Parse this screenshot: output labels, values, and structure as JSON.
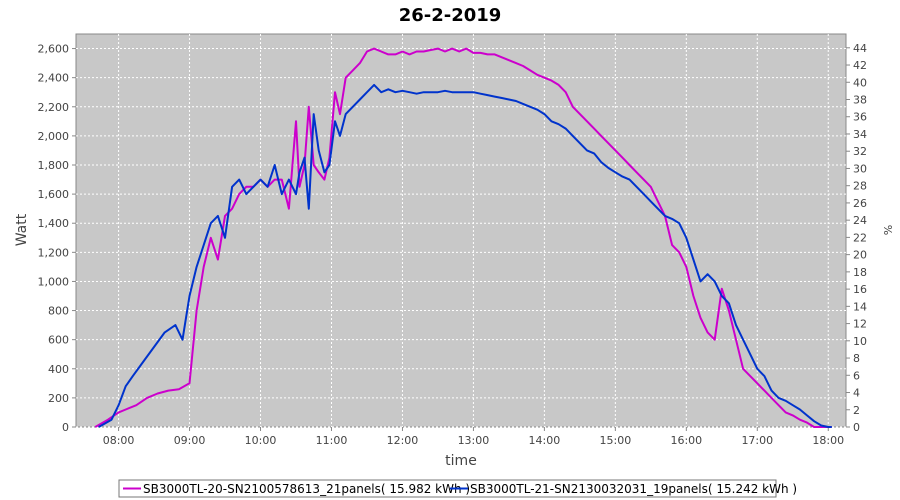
{
  "chart_data": {
    "type": "line",
    "title": "26-2-2019",
    "xlabel": "time",
    "ylabel": "Watt",
    "y2label": "%",
    "x_unit": "hours",
    "xlim": [
      7.4,
      18.25
    ],
    "ylim": [
      0,
      2700
    ],
    "y2lim": [
      0,
      45.6
    ],
    "x_ticks": [
      "08:00",
      "09:00",
      "10:00",
      "11:00",
      "12:00",
      "13:00",
      "14:00",
      "15:00",
      "16:00",
      "17:00",
      "18:00"
    ],
    "x_tick_values": [
      8,
      9,
      10,
      11,
      12,
      13,
      14,
      15,
      16,
      17,
      18
    ],
    "y_ticks": [
      0,
      200,
      400,
      600,
      800,
      1000,
      1200,
      1400,
      1600,
      1800,
      2000,
      2200,
      2400,
      2600
    ],
    "y_tick_labels": [
      "0",
      "200",
      "400",
      "600",
      "800",
      "1,000",
      "1,200",
      "1,400",
      "1,600",
      "1,800",
      "2,000",
      "2,200",
      "2,400",
      "2,600"
    ],
    "y2_ticks": [
      0,
      2,
      4,
      6,
      8,
      10,
      12,
      14,
      16,
      18,
      20,
      22,
      24,
      26,
      28,
      30,
      32,
      34,
      36,
      38,
      40,
      42,
      44
    ],
    "grid": true,
    "legend_position": "bottom",
    "series": [
      {
        "name": "SB3000TL-20-SN2100578613_21panels( 15.982 kWh )",
        "color": "#cc00cc",
        "x": [
          7.67,
          7.85,
          8.0,
          8.1,
          8.25,
          8.4,
          8.55,
          8.7,
          8.85,
          9.0,
          9.1,
          9.2,
          9.3,
          9.4,
          9.5,
          9.6,
          9.7,
          9.8,
          9.9,
          10.0,
          10.1,
          10.2,
          10.3,
          10.4,
          10.5,
          10.55,
          10.62,
          10.68,
          10.75,
          10.82,
          10.9,
          10.97,
          11.05,
          11.12,
          11.2,
          11.3,
          11.4,
          11.5,
          11.6,
          11.7,
          11.8,
          11.9,
          12.0,
          12.1,
          12.2,
          12.3,
          12.4,
          12.5,
          12.6,
          12.7,
          12.8,
          12.9,
          13.0,
          13.1,
          13.2,
          13.3,
          13.4,
          13.5,
          13.6,
          13.7,
          13.8,
          13.9,
          14.0,
          14.1,
          14.2,
          14.3,
          14.4,
          14.5,
          14.6,
          14.7,
          14.8,
          14.9,
          15.0,
          15.1,
          15.2,
          15.3,
          15.4,
          15.5,
          15.6,
          15.7,
          15.8,
          15.9,
          16.0,
          16.1,
          16.2,
          16.3,
          16.4,
          16.5,
          16.6,
          16.7,
          16.8,
          16.9,
          17.0,
          17.1,
          17.2,
          17.3,
          17.4,
          17.5,
          17.6,
          17.7,
          17.8,
          17.9,
          18.0,
          18.05
        ],
        "values": [
          0,
          50,
          100,
          120,
          150,
          200,
          230,
          250,
          260,
          300,
          800,
          1100,
          1300,
          1150,
          1450,
          1500,
          1600,
          1650,
          1650,
          1700,
          1650,
          1700,
          1700,
          1500,
          2100,
          1650,
          1800,
          2200,
          1800,
          1750,
          1700,
          1850,
          2300,
          2150,
          2400,
          2450,
          2500,
          2580,
          2600,
          2580,
          2560,
          2560,
          2580,
          2560,
          2580,
          2580,
          2590,
          2600,
          2580,
          2600,
          2580,
          2600,
          2570,
          2570,
          2560,
          2560,
          2540,
          2520,
          2500,
          2480,
          2450,
          2420,
          2400,
          2380,
          2350,
          2300,
          2200,
          2150,
          2100,
          2050,
          2000,
          1950,
          1900,
          1850,
          1800,
          1750,
          1700,
          1650,
          1550,
          1450,
          1250,
          1200,
          1100,
          900,
          750,
          650,
          600,
          950,
          800,
          600,
          400,
          350,
          300,
          250,
          200,
          150,
          100,
          80,
          50,
          30,
          0,
          0,
          0,
          0
        ]
      },
      {
        "name": "SB3000TL-21-SN2130032031_19panels( 15.242 kWh )",
        "color": "#0033cc",
        "x": [
          7.72,
          7.9,
          8.0,
          8.1,
          8.2,
          8.35,
          8.5,
          8.65,
          8.8,
          8.9,
          9.0,
          9.1,
          9.2,
          9.3,
          9.4,
          9.5,
          9.6,
          9.7,
          9.8,
          9.9,
          10.0,
          10.1,
          10.2,
          10.3,
          10.4,
          10.5,
          10.55,
          10.62,
          10.68,
          10.75,
          10.82,
          10.9,
          10.97,
          11.05,
          11.12,
          11.2,
          11.3,
          11.4,
          11.5,
          11.6,
          11.7,
          11.8,
          11.9,
          12.0,
          12.1,
          12.2,
          12.3,
          12.4,
          12.5,
          12.6,
          12.7,
          12.8,
          12.9,
          13.0,
          13.1,
          13.2,
          13.3,
          13.4,
          13.5,
          13.6,
          13.7,
          13.8,
          13.9,
          14.0,
          14.1,
          14.2,
          14.3,
          14.4,
          14.5,
          14.6,
          14.7,
          14.8,
          14.9,
          15.0,
          15.1,
          15.2,
          15.3,
          15.4,
          15.5,
          15.6,
          15.7,
          15.8,
          15.9,
          16.0,
          16.1,
          16.2,
          16.3,
          16.4,
          16.5,
          16.6,
          16.7,
          16.8,
          16.9,
          17.0,
          17.1,
          17.2,
          17.3,
          17.4,
          17.5,
          17.6,
          17.7,
          17.8,
          17.9,
          18.0,
          18.05
        ],
        "values": [
          0,
          50,
          150,
          280,
          350,
          450,
          550,
          650,
          700,
          600,
          900,
          1100,
          1250,
          1400,
          1450,
          1300,
          1650,
          1700,
          1600,
          1650,
          1700,
          1650,
          1800,
          1600,
          1700,
          1600,
          1750,
          1850,
          1500,
          2150,
          1900,
          1750,
          1800,
          2100,
          2000,
          2150,
          2200,
          2250,
          2300,
          2350,
          2300,
          2320,
          2300,
          2310,
          2300,
          2290,
          2300,
          2300,
          2300,
          2310,
          2300,
          2300,
          2300,
          2300,
          2290,
          2280,
          2270,
          2260,
          2250,
          2240,
          2220,
          2200,
          2180,
          2150,
          2100,
          2080,
          2050,
          2000,
          1950,
          1900,
          1880,
          1820,
          1780,
          1750,
          1720,
          1700,
          1650,
          1600,
          1550,
          1500,
          1450,
          1430,
          1400,
          1300,
          1150,
          1000,
          1050,
          1000,
          900,
          850,
          700,
          600,
          500,
          400,
          350,
          250,
          200,
          180,
          150,
          120,
          80,
          40,
          10,
          0,
          0
        ]
      }
    ]
  }
}
